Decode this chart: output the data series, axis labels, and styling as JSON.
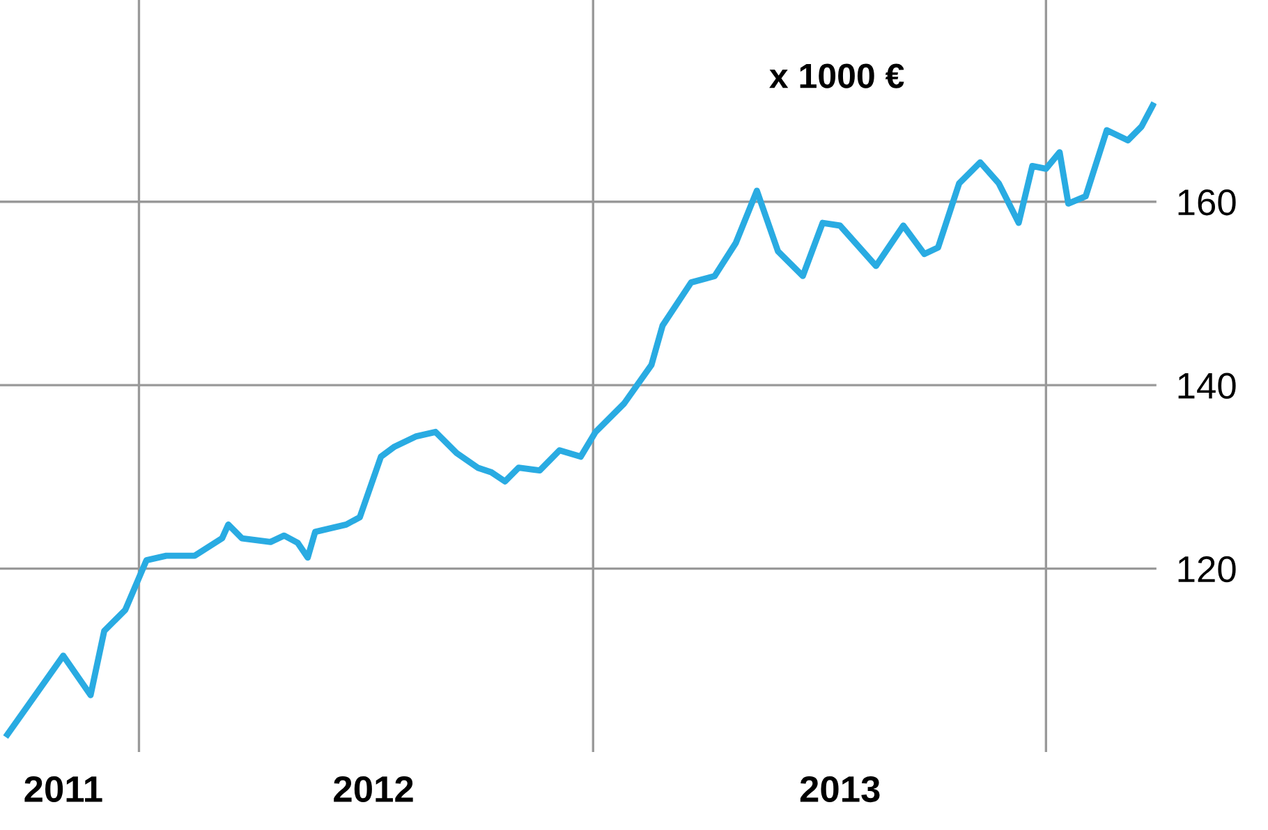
{
  "chart_data": {
    "type": "line",
    "annotations": [
      "x 1000 €"
    ],
    "x": [
      "2011-09-17",
      "2011-11-01",
      "2011-11-23",
      "2011-12-04",
      "2011-12-21",
      "2012-01-07",
      "2012-01-23",
      "2012-02-15",
      "2012-03-08",
      "2012-03-13",
      "2012-03-24",
      "2012-04-16",
      "2012-04-27",
      "2012-05-08",
      "2012-05-16",
      "2012-05-22",
      "2012-06-16",
      "2012-06-27",
      "2012-07-14",
      "2012-07-25",
      "2012-08-11",
      "2012-08-27",
      "2012-09-13",
      "2012-09-30",
      "2012-10-11",
      "2012-10-22",
      "2012-11-02",
      "2012-11-19",
      "2012-12-05",
      "2012-12-22",
      "2013-01-03",
      "2013-01-26",
      "2013-02-17",
      "2013-02-26",
      "2013-03-21",
      "2013-04-09",
      "2013-04-26",
      "2013-05-13",
      "2013-05-30",
      "2013-06-19",
      "2013-07-05",
      "2013-07-19",
      "2013-08-17",
      "2013-09-08",
      "2013-09-25",
      "2013-10-06",
      "2013-10-23",
      "2013-11-09",
      "2013-11-24",
      "2013-12-10",
      "2013-12-21",
      "2014-01-01",
      "2014-01-12",
      "2014-01-19",
      "2014-02-02",
      "2014-02-19",
      "2014-03-08",
      "2014-03-19",
      "2014-03-28"
    ],
    "series": [
      {
        "color": "#29abe2",
        "values": [
          101.9,
          110.5,
          106.2,
          113.2,
          115.5,
          120.9,
          121.4,
          121.4,
          123.3,
          124.8,
          123.3,
          122.9,
          123.6,
          122.8,
          121.2,
          124.0,
          124.8,
          125.6,
          132.2,
          133.3,
          134.4,
          134.9,
          132.6,
          131.0,
          130.5,
          129.5,
          131.0,
          130.7,
          132.9,
          132.2,
          134.9,
          138.0,
          142.2,
          146.5,
          151.2,
          151.9,
          155.5,
          161.2,
          154.6,
          151.9,
          157.7,
          157.4,
          153.0,
          157.4,
          154.3,
          155.0,
          162.0,
          164.3,
          162.0,
          157.7,
          163.9,
          163.6,
          165.4,
          159.8,
          160.6,
          167.8,
          166.7,
          168.2,
          170.5
        ]
      }
    ],
    "xlim": [
      "2011-09-11",
      "2014-03-31"
    ],
    "xticks": [
      {
        "value": "2011-11-01",
        "label": "2011"
      },
      {
        "value": "2012-07-08",
        "label": "2012"
      },
      {
        "value": "2013-07-19",
        "label": "2013"
      }
    ],
    "ylim": [
      100,
      182
    ],
    "yticks": [
      120,
      140,
      160
    ],
    "grid": "y",
    "marker": "none",
    "line_style": "solid",
    "legend": false,
    "ref_lines": [
      {
        "axis": "x",
        "value": "2012-01-01",
        "color": "#999999"
      },
      {
        "axis": "x",
        "value": "2013-01-01",
        "color": "#999999"
      },
      {
        "axis": "x",
        "value": "2014-01-01",
        "color": "#999999"
      }
    ]
  }
}
